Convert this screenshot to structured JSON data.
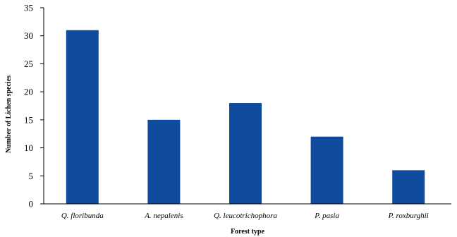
{
  "chart_data": {
    "type": "bar",
    "categories": [
      "Q. floribunda",
      "A. nepalenis",
      "Q. leucotrichophora",
      "P. pasia",
      "P. roxburghii"
    ],
    "values": [
      31,
      15,
      18,
      12,
      6
    ],
    "xlabel": "Forest type",
    "ylabel": "Number of Lichen species",
    "ylim": [
      0,
      35
    ],
    "yticks": [
      "0",
      "5",
      "10",
      "15",
      "20",
      "25",
      "30",
      "35"
    ],
    "grid": false,
    "bar_color": "#0f4c9e"
  }
}
